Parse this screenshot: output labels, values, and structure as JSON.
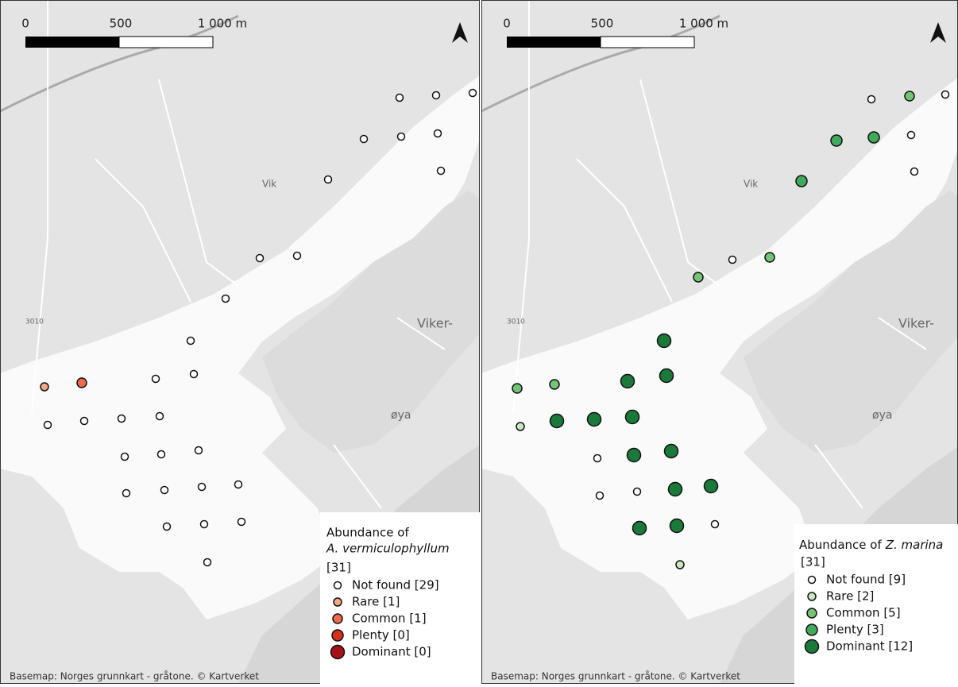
{
  "panels": [
    {
      "scale": {
        "zero": "0",
        "mid": "500",
        "end": "1 000 m"
      },
      "places": {
        "village": "Vik",
        "island_top": "Viker-",
        "island_bottom": "øya",
        "road": "3010"
      },
      "credit": "Basemap: Norges grunnkart - gråtone. © Kartverket",
      "legend": {
        "title": "Abundance of",
        "species": "A. vermiculophyllum",
        "total": "[31]",
        "items": [
          {
            "label": "Not found [29]",
            "color": "#ffffff"
          },
          {
            "label": "Rare [1]",
            "color": "#f7a584"
          },
          {
            "label": "Common [1]",
            "color": "#ef6a4b"
          },
          {
            "label": "Plenty [0]",
            "color": "#d7301f"
          },
          {
            "label": "Dominant [0]",
            "color": "#a50f15"
          }
        ]
      }
    },
    {
      "scale": {
        "zero": "0",
        "mid": "500",
        "end": "1 000 m"
      },
      "places": {
        "village": "Vik",
        "island_top": "Viker-",
        "island_bottom": "øya",
        "road": "3010"
      },
      "credit": "Basemap: Norges grunnkart - gråtone. © Kartverket",
      "legend": {
        "title": "Abundance of",
        "species": "Z. marina",
        "total": "[31]",
        "items": [
          {
            "label": "Not found [9]",
            "color": "#ffffff"
          },
          {
            "label": "Rare [2]",
            "color": "#c7e9c0"
          },
          {
            "label": "Common [5]",
            "color": "#74c476"
          },
          {
            "label": "Plenty [3]",
            "color": "#41ab5d"
          },
          {
            "label": "Dominant [12]",
            "color": "#1b7a3a"
          }
        ]
      }
    }
  ]
}
